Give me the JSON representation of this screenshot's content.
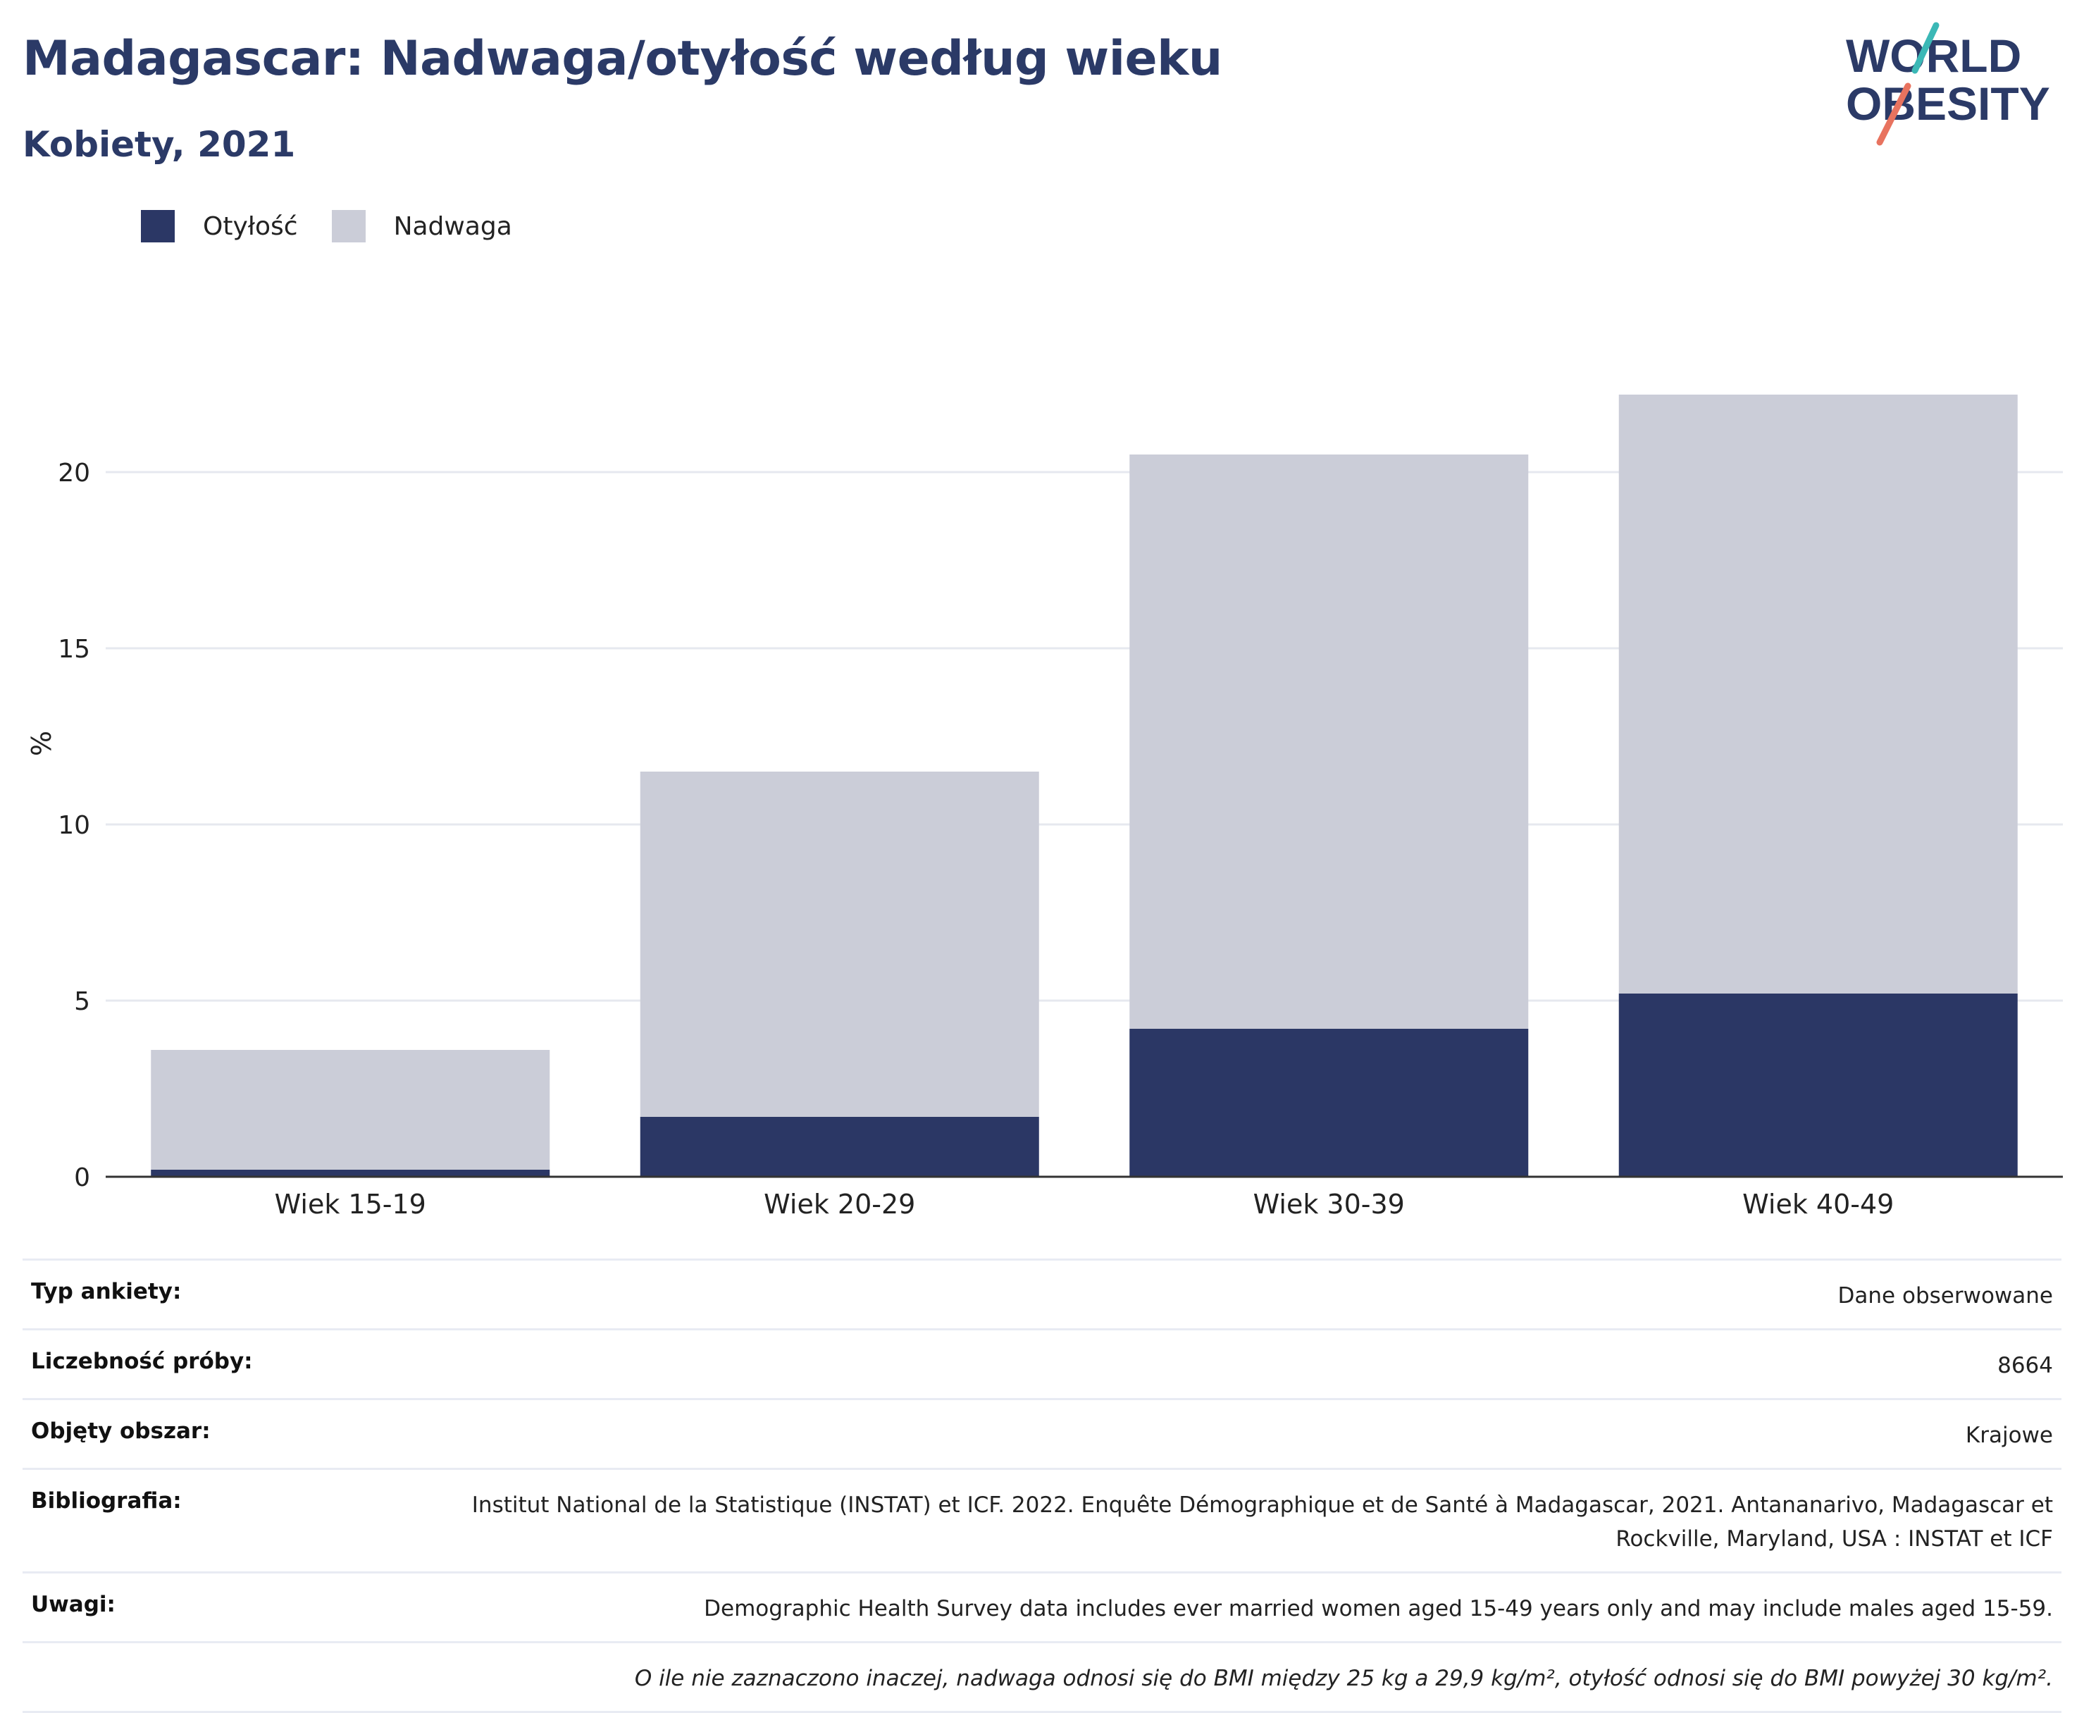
{
  "header": {
    "title": "Madagascar: Nadwaga/otyłość według wieku",
    "subtitle": "Kobiety, 2021"
  },
  "logo": {
    "line1": "WORLD",
    "line2": "OBESITY",
    "text_color": "#2b3a67",
    "accent_colors": [
      "#3bb8b6",
      "#e8735f"
    ]
  },
  "legend": {
    "items": [
      {
        "label": "Otyłość",
        "color": "#2b3765"
      },
      {
        "label": "Nadwaga",
        "color": "#cbcdd8"
      }
    ]
  },
  "chart_data": {
    "type": "bar",
    "stacked": true,
    "categories": [
      "Wiek 15-19",
      "Wiek 20-29",
      "Wiek 30-39",
      "Wiek 40-49"
    ],
    "series": [
      {
        "name": "Otyłość",
        "values": [
          0.2,
          1.7,
          4.2,
          5.2
        ],
        "color": "#2b3765"
      },
      {
        "name": "Nadwaga",
        "values": [
          3.4,
          9.8,
          16.3,
          17.0
        ],
        "color": "#cbcdd8"
      }
    ],
    "ylabel": "%",
    "xlabel": "",
    "ylim": [
      0,
      24
    ],
    "yticks": [
      0,
      5,
      10,
      15,
      20
    ],
    "grid": true,
    "legend_position": "top-left"
  },
  "metadata": {
    "rows": [
      {
        "key": "Typ ankiety:",
        "value": "Dane obserwowane"
      },
      {
        "key": "Liczebność próby:",
        "value": "8664"
      },
      {
        "key": "Objęty obszar:",
        "value": "Krajowe"
      },
      {
        "key": "Bibliografia:",
        "value": "Institut National de la Statistique (INSTAT) et ICF. 2022. Enquête Démographique et de Santé à Madagascar, 2021. Antananarivo, Madagascar et Rockville, Maryland, USA : INSTAT et ICF"
      },
      {
        "key": "Uwagi:",
        "value": "Demographic Health Survey data includes ever married women aged 15-49 years only and may include males aged 15-59."
      }
    ],
    "footnote": "O ile nie zaznaczono inaczej, nadwaga odnosi się do BMI między 25 kg a 29,9 kg/m², otyłość odnosi się do BMI powyżej 30 kg/m²."
  }
}
